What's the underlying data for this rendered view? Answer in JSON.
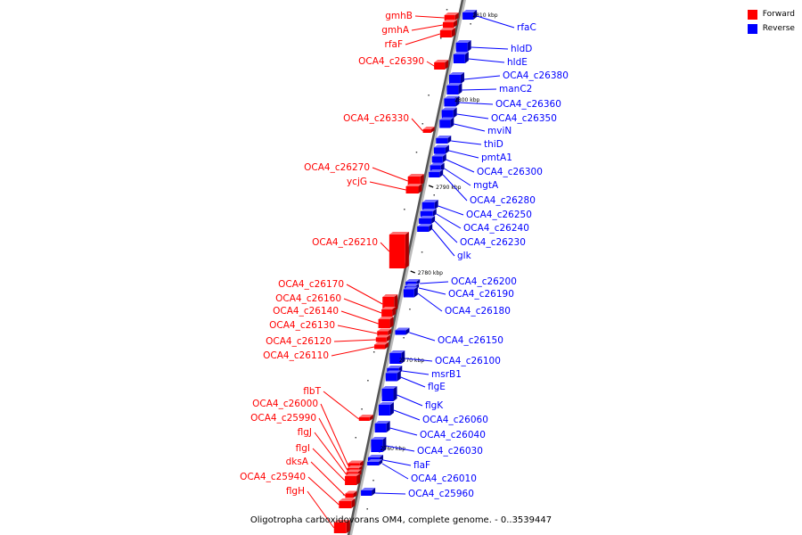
{
  "legend": {
    "forward_label": "Forward",
    "reverse_label": "Reverse",
    "forward_color": "#ff0000",
    "reverse_color": "#0000ff"
  },
  "caption": "Oligotropha carboxidovorans OM4, complete genome. - 0..3539447",
  "ticks": [
    "2810 kbp",
    "2800 kbp",
    "2790 kbp",
    "2780 kbp",
    "2770 kbp",
    "2760 kbp"
  ],
  "genes_forward": [
    "gmhB",
    "gmhA",
    "rfaF",
    "OCA4_c26390",
    "OCA4_c26330",
    "OCA4_c26270",
    "ycjG",
    "OCA4_c26210",
    "OCA4_c26170",
    "OCA4_c26160",
    "OCA4_c26140",
    "OCA4_c26130",
    "OCA4_c26120",
    "OCA4_c26110",
    "flbT",
    "OCA4_c26000",
    "OCA4_c25990",
    "flgJ",
    "flgI",
    "dksA",
    "OCA4_c25940",
    "flgH"
  ],
  "genes_reverse": [
    "rfaC",
    "hldD",
    "hldE",
    "OCA4_c26380",
    "manC2",
    "OCA4_c26360",
    "OCA4_c26350",
    "mviN",
    "thiD",
    "pmtA1",
    "OCA4_c26300",
    "mgtA",
    "OCA4_c26280",
    "OCA4_c26250",
    "OCA4_c26240",
    "OCA4_c26230",
    "glk",
    "OCA4_c26200",
    "OCA4_c26190",
    "OCA4_c26180",
    "OCA4_c26150",
    "OCA4_c26100",
    "msrB1",
    "flgE",
    "flgK",
    "OCA4_c26060",
    "OCA4_c26040",
    "OCA4_c26030",
    "flaF",
    "OCA4_c26010",
    "OCA4_c25960"
  ]
}
